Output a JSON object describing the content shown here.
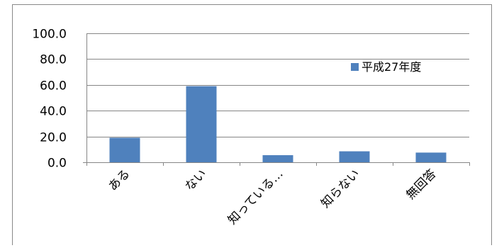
{
  "chart_data": {
    "type": "bar",
    "title": "",
    "xlabel": "",
    "ylabel": "",
    "categories": [
      "ある",
      "ない",
      "知っている…",
      "知らない",
      "無回答"
    ],
    "series": [
      {
        "name": "平成27年度",
        "values": [
          19.0,
          59.0,
          5.5,
          8.5,
          7.5
        ],
        "color": "#4f81bd"
      }
    ],
    "yticks": [
      "0.0",
      "20.0",
      "40.0",
      "60.0",
      "80.0",
      "100.0"
    ],
    "ylim": [
      0,
      100
    ],
    "grid": true,
    "legend_position": "right"
  }
}
